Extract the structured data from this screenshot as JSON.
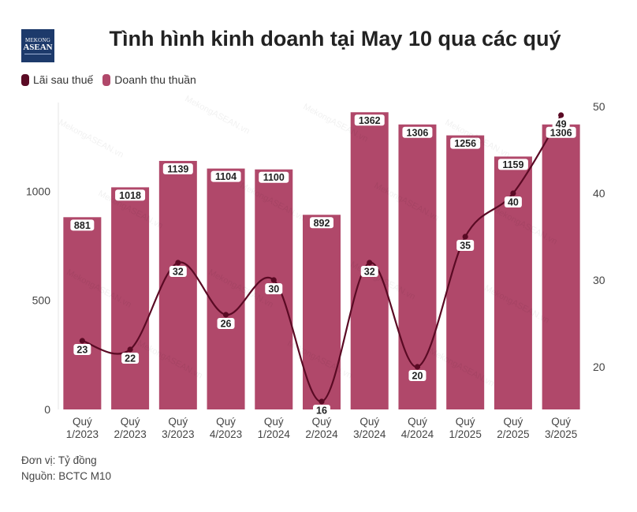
{
  "logo": {
    "line1": "MEKONG",
    "line2": "ASEAN"
  },
  "title": "Tình hình kinh doanh tại May 10 qua các quý",
  "legend": [
    {
      "label": "Lãi sau thuế",
      "color": "#5a0a24"
    },
    {
      "label": "Doanh thu thuần",
      "color": "#b0486a"
    }
  ],
  "chart_data": {
    "type": "bar",
    "categories": [
      "Quý 1/2023",
      "Quý 2/2023",
      "Quý 3/2023",
      "Quý 4/2023",
      "Quý 1/2024",
      "Quý 2/2024",
      "Quý 3/2024",
      "Quý 4/2024",
      "Quý 1/2025",
      "Quý 2/2025",
      "Quý 3/2025"
    ],
    "series": [
      {
        "name": "Doanh thu thuần",
        "type": "bar",
        "axis": "left",
        "color": "#b0486a",
        "values": [
          881,
          1018,
          1139,
          1104,
          1100,
          892,
          1362,
          1306,
          1256,
          1159,
          1306
        ]
      },
      {
        "name": "Lãi sau thuế",
        "type": "line",
        "axis": "right",
        "color": "#5a0a24",
        "values": [
          23,
          22,
          32,
          26,
          30,
          16,
          32,
          20,
          35,
          40,
          49
        ]
      }
    ],
    "y_left": {
      "ticks": [
        0,
        500,
        1000
      ],
      "range": [
        0,
        1400
      ]
    },
    "y_right": {
      "ticks": [
        20,
        30,
        40,
        50
      ],
      "range": [
        15,
        50
      ]
    },
    "grid": false,
    "legend_position": "top-left"
  },
  "footer": {
    "unit": "Đơn vị: Tỷ đồng",
    "source": "Nguồn: BCTC M10"
  },
  "watermark_text": "MekongASEAN.vn"
}
